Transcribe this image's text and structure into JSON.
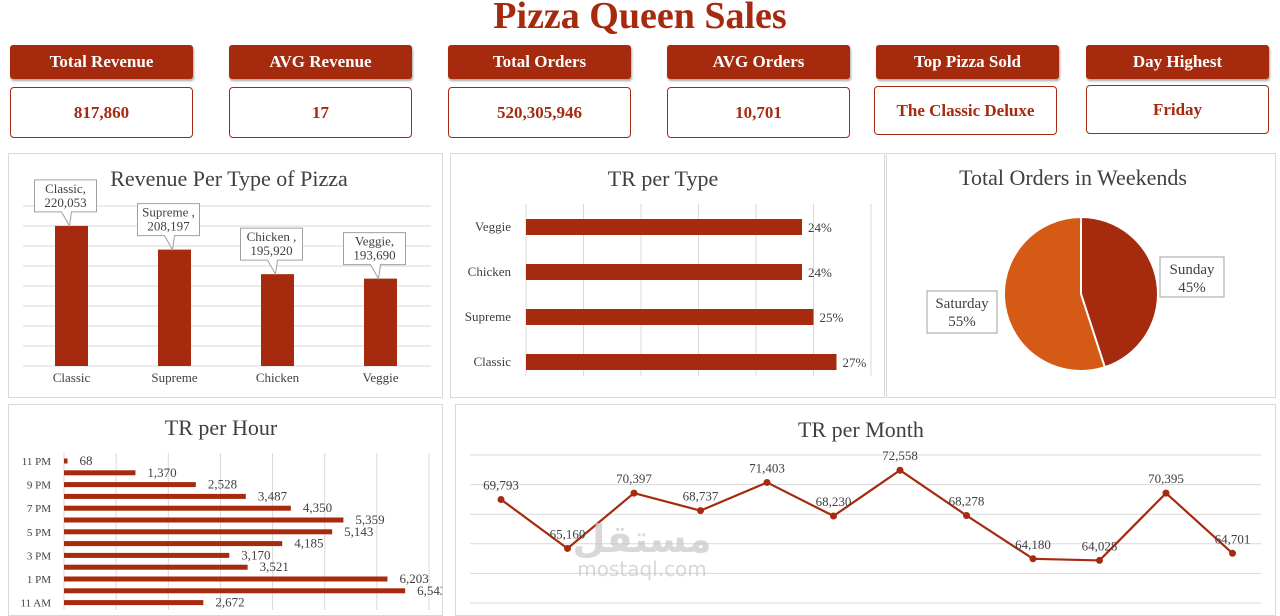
{
  "header": {
    "title": "Pizza Queen Sales"
  },
  "kpis": [
    {
      "label": "Total Revenue",
      "value": "817,860"
    },
    {
      "label": "AVG Revenue",
      "value": "17"
    },
    {
      "label": "Total Orders",
      "value": "520,305,946"
    },
    {
      "label": "AVG Orders",
      "value": "10,701"
    },
    {
      "label": "Top Pizza Sold",
      "value": "The Classic Deluxe"
    },
    {
      "label": "Day Highest",
      "value": "Friday"
    }
  ],
  "watermark": {
    "arabic": "مستقل",
    "latin": "mostaql.com"
  },
  "colors": {
    "primary": "#a52a0e",
    "secondary": "#d55a16",
    "grid": "#d9d9d9"
  },
  "chart_data": [
    {
      "type": "bar",
      "title": "Revenue Per Type of Pizza",
      "categories": [
        "Classic",
        "Supreme",
        "Chicken",
        "Veggie"
      ],
      "values": [
        220053,
        208197,
        195920,
        193690
      ],
      "data_labels": [
        [
          "Classic,",
          "220,053"
        ],
        [
          "Supreme ,",
          "208,197"
        ],
        [
          "Chicken ,",
          "195,920"
        ],
        [
          "Veggie,",
          "193,690"
        ]
      ],
      "ylim": [
        150000,
        230000
      ],
      "grid": true
    },
    {
      "type": "bar",
      "orientation": "horizontal",
      "title": "TR per Type",
      "categories": [
        "Veggie",
        "Chicken",
        "Supreme",
        "Classic"
      ],
      "values": [
        24,
        24,
        25,
        27
      ],
      "data_labels": [
        "24%",
        "24%",
        "25%",
        "27%"
      ],
      "xlim": [
        0,
        30
      ],
      "grid": true
    },
    {
      "type": "pie",
      "title": "Total Orders in Weekends",
      "slices": [
        {
          "label": "Sunday",
          "pct": "45%",
          "value": 45
        },
        {
          "label": "Saturday",
          "pct": "55%",
          "value": 55
        }
      ]
    },
    {
      "type": "bar",
      "orientation": "horizontal",
      "title": "TR per Hour",
      "tick_labels": [
        "11 PM",
        "9 PM",
        "7 PM",
        "5 PM",
        "3 PM",
        "1 PM",
        "11 AM"
      ],
      "values": [
        68,
        1370,
        2528,
        3487,
        4350,
        5359,
        5143,
        4185,
        3170,
        3521,
        6203,
        6543,
        2672
      ],
      "data_labels": [
        "68",
        "1,370",
        "2,528",
        "3,487",
        "4,350",
        "5,359",
        "5,143",
        "4,185",
        "3,170",
        "3,521",
        "6,203",
        "6,543",
        "2,672"
      ],
      "xlim": [
        0,
        7000
      ],
      "grid": true
    },
    {
      "type": "line",
      "title": "TR per Month",
      "values": [
        69793,
        65160,
        70397,
        68737,
        71403,
        68230,
        72558,
        68278,
        64180,
        64028,
        70395,
        64701
      ],
      "data_labels": [
        "69,793",
        "65,160",
        "70,397",
        "68,737",
        "71,403",
        "68,230",
        "72,558",
        "68,278",
        "64,180",
        "64,028",
        "70,395",
        "64,701"
      ],
      "ylim": [
        60000,
        74000
      ],
      "grid": true
    }
  ]
}
